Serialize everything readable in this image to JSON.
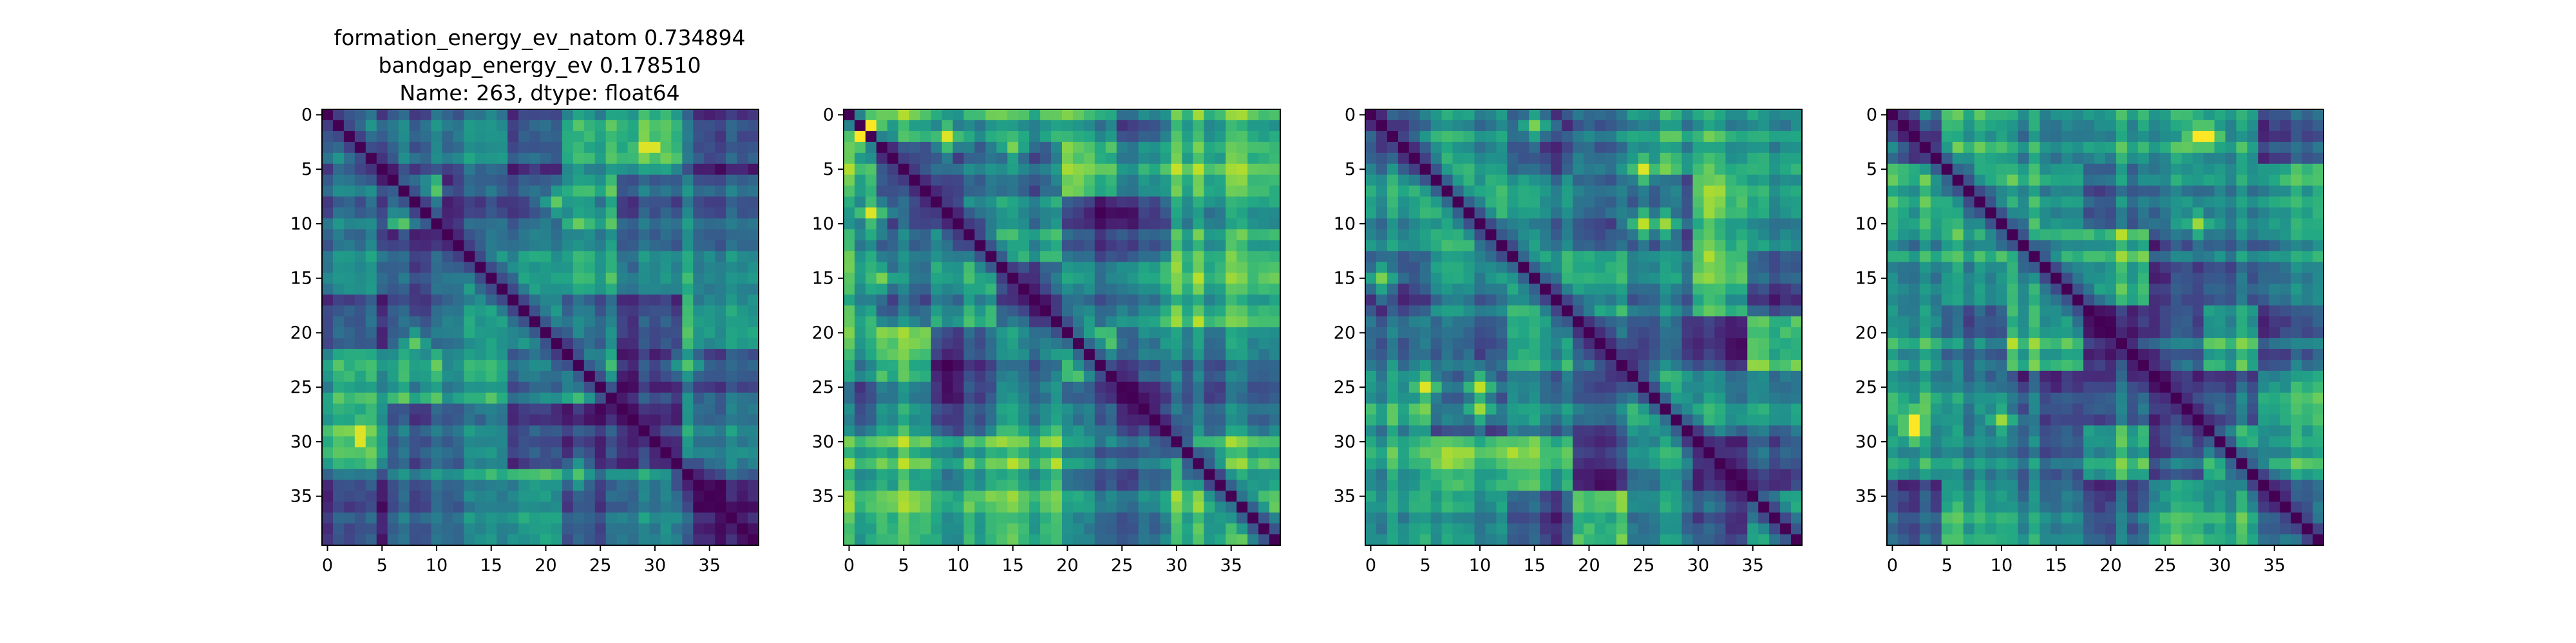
{
  "figure": {
    "title_lines": [
      "formation_energy_ev_natom    0.734894",
      "bandgap_energy_ev            0.178510",
      "Name: 263, dtype: float64"
    ]
  },
  "chart_data": [
    {
      "type": "heatmap",
      "colormap": "viridis",
      "size": 40,
      "seed": 11,
      "title": "formation_energy_ev_natom    0.734894 / bandgap_energy_ev 0.178510 / Name: 263, dtype: float64",
      "x_ticks": [
        0,
        5,
        10,
        15,
        20,
        25,
        30,
        35
      ],
      "y_ticks": [
        0,
        5,
        10,
        15,
        20,
        25,
        30,
        35
      ],
      "xlim": [
        -0.5,
        39.5
      ],
      "ylim": [
        39.5,
        -0.5
      ],
      "blocks": [
        0,
        6,
        11,
        17,
        22,
        27,
        33,
        40
      ],
      "hotspots": [
        {
          "r": 3,
          "c": 30,
          "v": 0.95
        },
        {
          "r": 29,
          "c": 3,
          "v": 0.95
        },
        {
          "r": 21,
          "c": 8,
          "v": 0.75
        },
        {
          "r": 33,
          "c": 23,
          "v": 0.72
        }
      ]
    },
    {
      "type": "heatmap",
      "colormap": "viridis",
      "size": 40,
      "seed": 29,
      "x_ticks": [
        0,
        5,
        10,
        15,
        20,
        25,
        30,
        35
      ],
      "y_ticks": [
        0,
        5,
        10,
        15,
        20,
        25,
        30,
        35
      ],
      "xlim": [
        -0.5,
        39.5
      ],
      "ylim": [
        39.5,
        -0.5
      ],
      "blocks": [
        0,
        3,
        8,
        14,
        20,
        25,
        30,
        40
      ],
      "hotspots": [
        {
          "r": 1,
          "c": 2,
          "v": 1.0
        },
        {
          "r": 2,
          "c": 1,
          "v": 1.0
        },
        {
          "r": 9,
          "c": 2,
          "v": 0.95
        },
        {
          "r": 30,
          "c": 14,
          "v": 0.85
        },
        {
          "r": 3,
          "c": 15,
          "v": 0.8
        }
      ]
    },
    {
      "type": "heatmap",
      "colormap": "viridis",
      "size": 40,
      "seed": 47,
      "x_ticks": [
        0,
        5,
        10,
        15,
        20,
        25,
        30,
        35
      ],
      "y_ticks": [
        0,
        5,
        10,
        15,
        20,
        25,
        30,
        35
      ],
      "xlim": [
        -0.5,
        39.5
      ],
      "ylim": [
        39.5,
        -0.5
      ],
      "blocks": [
        0,
        6,
        13,
        19,
        24,
        30,
        35,
        40
      ],
      "hotspots": [
        {
          "r": 5,
          "c": 25,
          "v": 0.95
        },
        {
          "r": 25,
          "c": 5,
          "v": 0.95
        },
        {
          "r": 10,
          "c": 27,
          "v": 0.85
        },
        {
          "r": 25,
          "c": 10,
          "v": 0.9
        },
        {
          "r": 1,
          "c": 15,
          "v": 0.8
        }
      ]
    },
    {
      "type": "heatmap",
      "colormap": "viridis",
      "size": 40,
      "seed": 83,
      "x_ticks": [
        0,
        5,
        10,
        15,
        20,
        25,
        30,
        35
      ],
      "y_ticks": [
        0,
        5,
        10,
        15,
        20,
        25,
        30,
        35
      ],
      "xlim": [
        -0.5,
        39.5
      ],
      "ylim": [
        39.5,
        -0.5
      ],
      "blocks": [
        0,
        5,
        11,
        18,
        24,
        29,
        34,
        40
      ],
      "hotspots": [
        {
          "r": 2,
          "c": 28,
          "v": 1.0
        },
        {
          "r": 29,
          "c": 2,
          "v": 1.0
        },
        {
          "r": 28,
          "c": 10,
          "v": 0.85
        },
        {
          "r": 10,
          "c": 28,
          "v": 0.82
        }
      ]
    }
  ]
}
